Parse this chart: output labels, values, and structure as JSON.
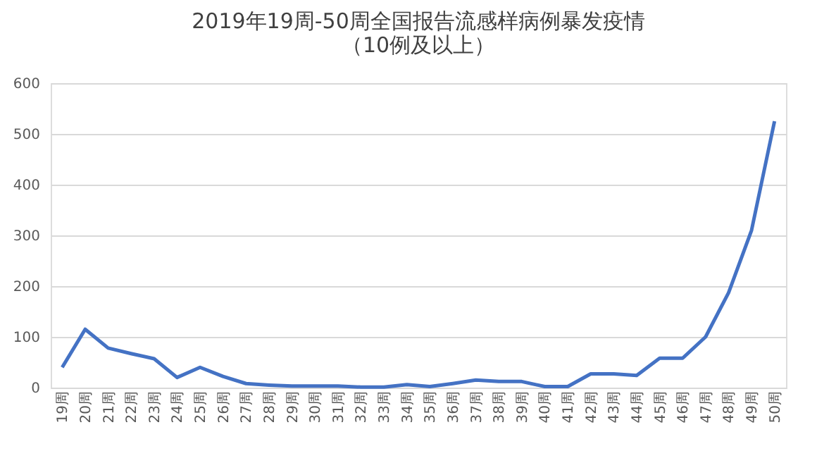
{
  "chart_data": {
    "type": "line",
    "title": [
      "2019年19周-50周全国报告流感样病例暴发疫情",
      "（10例及以上）"
    ],
    "categories": [
      "19周",
      "20周",
      "21周",
      "22周",
      "23周",
      "24周",
      "25周",
      "26周",
      "27周",
      "28周",
      "29周",
      "30周",
      "31周",
      "32周",
      "33周",
      "34周",
      "35周",
      "36周",
      "37周",
      "38周",
      "39周",
      "40周",
      "41周",
      "42周",
      "43周",
      "44周",
      "45周",
      "46周",
      "47周",
      "48周",
      "49周",
      "50周"
    ],
    "series": [
      {
        "color": "#4472c4",
        "values": [
          40,
          115,
          78,
          67,
          57,
          20,
          40,
          22,
          8,
          5,
          3,
          3,
          3,
          1,
          1,
          6,
          2,
          8,
          15,
          12,
          12,
          2,
          2,
          27,
          27,
          24,
          58,
          58,
          100,
          187,
          310,
          525
        ]
      }
    ],
    "ylim": [
      0,
      600
    ],
    "yticks": [
      0,
      100,
      200,
      300,
      400,
      500,
      600
    ],
    "grid": "y",
    "marker": "none",
    "line_style": "solid"
  }
}
